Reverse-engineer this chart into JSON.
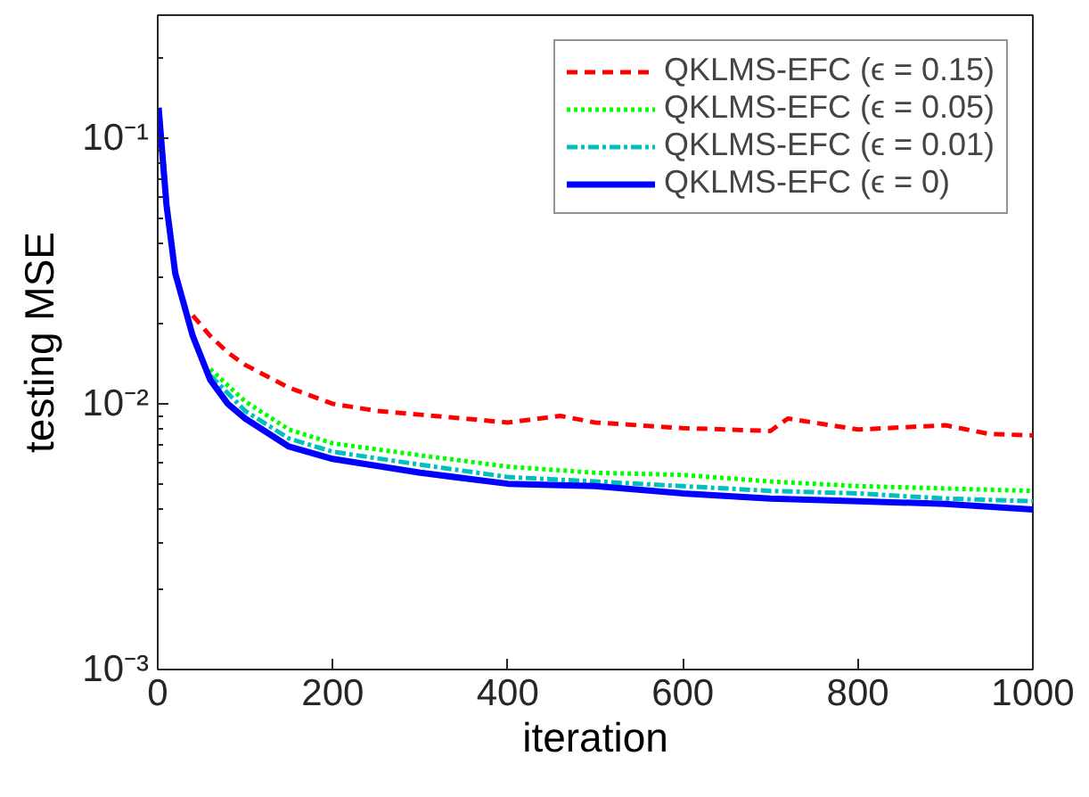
{
  "chart_data": {
    "type": "line",
    "xlabel": "iteration",
    "ylabel": "testing MSE",
    "log": "y",
    "grid": false,
    "legend": "top right",
    "xlim": [
      0,
      1000
    ],
    "xticks": [
      0,
      200,
      400,
      600,
      800,
      1000
    ],
    "ylim": [
      0.001,
      0.29
    ],
    "yticks": [
      {
        "value": 0.001,
        "label": "10⁻³"
      },
      {
        "value": 0.01,
        "label": "10⁻²"
      },
      {
        "value": 0.1,
        "label": "10⁻¹"
      }
    ],
    "series": [
      {
        "name": "QKLMS-EFC (ϵ = 0.15)",
        "color": "#ff0000",
        "line_style": "dashed",
        "x": [
          40,
          60,
          80,
          100,
          150,
          200,
          250,
          300,
          400,
          460,
          500,
          600,
          700,
          720,
          800,
          900,
          950,
          1000
        ],
        "values": [
          0.0215,
          0.018,
          0.0156,
          0.014,
          0.0115,
          0.01,
          0.0094,
          0.0091,
          0.0085,
          0.009,
          0.0085,
          0.0081,
          0.0079,
          0.0088,
          0.008,
          0.0083,
          0.0077,
          0.0076
        ]
      },
      {
        "name": "QKLMS-EFC (ϵ = 0.05)",
        "color": "#00ff00",
        "line_style": "dotted",
        "x": [
          60,
          100,
          150,
          200,
          300,
          400,
          500,
          600,
          700,
          800,
          900,
          1000
        ],
        "values": [
          0.0135,
          0.0102,
          0.008,
          0.0071,
          0.0064,
          0.0058,
          0.0055,
          0.0054,
          0.0051,
          0.0049,
          0.0048,
          0.0047
        ]
      },
      {
        "name": "QKLMS-EFC (ϵ = 0.01)",
        "color": "#00bfbf",
        "line_style": "dashdot",
        "x": [
          60,
          100,
          150,
          200,
          300,
          400,
          500,
          600,
          700,
          800,
          900,
          1000
        ],
        "values": [
          0.0128,
          0.0094,
          0.0074,
          0.0066,
          0.0059,
          0.0053,
          0.0051,
          0.0049,
          0.0047,
          0.0046,
          0.0044,
          0.0043
        ]
      },
      {
        "name": "QKLMS-EFC (ϵ = 0)",
        "color": "#0000ff",
        "line_style": "solid",
        "x": [
          1,
          10,
          20,
          40,
          60,
          80,
          100,
          150,
          200,
          300,
          400,
          500,
          600,
          700,
          800,
          900,
          1000
        ],
        "values": [
          0.13,
          0.056,
          0.031,
          0.018,
          0.0123,
          0.01,
          0.0088,
          0.0069,
          0.0062,
          0.0055,
          0.005,
          0.0049,
          0.0046,
          0.0044,
          0.0043,
          0.0042,
          0.004
        ]
      }
    ]
  }
}
